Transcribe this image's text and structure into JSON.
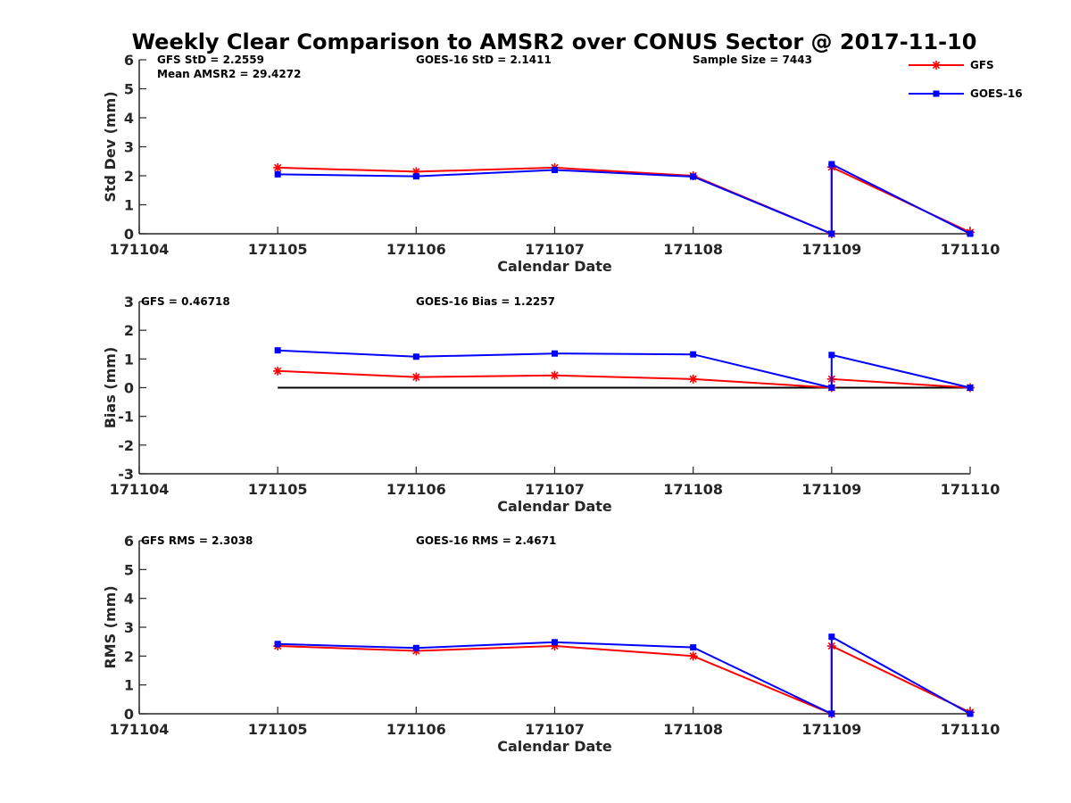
{
  "colors": {
    "gfs": "#ff0000",
    "goes": "#0000ff",
    "zero_line": "#000000",
    "axis": "#262626"
  },
  "chart_data": {
    "type": "line",
    "title": "Weekly Clear Comparison to AMSR2 over CONUS Sector @ 2017-11-10",
    "legend": {
      "placement": "top-right",
      "entries": [
        "GFS",
        "GOES-16"
      ]
    },
    "x": [
      171105,
      171106,
      171107,
      171108,
      171109,
      171109,
      171110
    ],
    "panels": [
      {
        "ylabel": "Std Dev (mm)",
        "xlabel": "Calendar Date",
        "ylim": [
          0,
          6
        ],
        "yticks": [
          "0",
          "1",
          "2",
          "3",
          "4",
          "5",
          "6"
        ],
        "xticks": [
          "171104",
          "171105",
          "171106",
          "171107",
          "171108",
          "171109",
          "171110"
        ],
        "xlim": [
          171104,
          171110
        ],
        "series": [
          {
            "name": "GFS",
            "values": [
              2.28,
              2.14,
              2.28,
              2.0,
              0.0,
              2.3,
              0.05
            ]
          },
          {
            "name": "GOES-16",
            "values": [
              2.05,
              1.98,
              2.2,
              1.97,
              0.0,
              2.4,
              0.0
            ]
          }
        ],
        "stats": {
          "left": "GFS StD = 2.2559",
          "left2": "Mean AMSR2 = 29.4272",
          "middle": "GOES-16 StD = 2.1411",
          "right": "Sample Size = 7443"
        }
      },
      {
        "ylabel": "Bias (mm)",
        "xlabel": "Calendar Date",
        "ylim": [
          -3,
          3
        ],
        "yticks": [
          "-3",
          "-2",
          "-1",
          "0",
          "1",
          "2",
          "3"
        ],
        "xticks": [
          "171104",
          "171105",
          "171106",
          "171107",
          "171108",
          "171109",
          "171110"
        ],
        "xlim": [
          171104,
          171110
        ],
        "zero_line": true,
        "series": [
          {
            "name": "GFS",
            "values": [
              0.58,
              0.37,
              0.43,
              0.3,
              0.0,
              0.3,
              0.0
            ]
          },
          {
            "name": "GOES-16",
            "values": [
              1.3,
              1.08,
              1.19,
              1.16,
              0.0,
              1.14,
              0.0
            ]
          }
        ],
        "stats": {
          "left": "GFS = 0.46718",
          "middle": "GOES-16 Bias  = 1.2257"
        }
      },
      {
        "ylabel": "RMS (mm)",
        "xlabel": "Calendar Date",
        "ylim": [
          0,
          6
        ],
        "yticks": [
          "0",
          "1",
          "2",
          "3",
          "4",
          "5",
          "6"
        ],
        "xticks": [
          "171104",
          "171105",
          "171106",
          "171107",
          "171108",
          "171109",
          "171110"
        ],
        "xlim": [
          171104,
          171110
        ],
        "series": [
          {
            "name": "GFS",
            "values": [
              2.35,
              2.18,
              2.35,
              2.0,
              0.0,
              2.35,
              0.05
            ]
          },
          {
            "name": "GOES-16",
            "values": [
              2.42,
              2.28,
              2.48,
              2.3,
              0.0,
              2.67,
              0.0
            ]
          }
        ],
        "stats": {
          "left": "GFS RMS = 2.3038",
          "middle": "GOES-16 RMS = 2.4671"
        }
      }
    ]
  }
}
